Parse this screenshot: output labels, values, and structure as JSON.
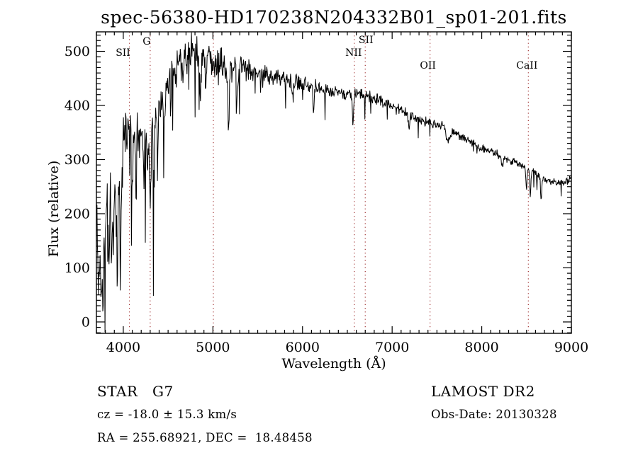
{
  "title": "spec-56380-HD170238N204332B01_sp01-201.fits",
  "annotations": {
    "classification": "STAR   G7",
    "survey": "LAMOST DR2",
    "cz": "cz = -18.0 ± 15.3 km/s",
    "obs_date": "Obs-Date: 20130328",
    "radec": "RA = 255.68921, DEC =  18.48458"
  },
  "chart_data": {
    "type": "line",
    "title": "spec-56380-HD170238N204332B01_sp01-201.fits",
    "xlabel": "Wavelength (Å)",
    "ylabel": "Flux (relative)",
    "xlim": [
      3700,
      9000
    ],
    "ylim": [
      -21,
      536
    ],
    "x_major_ticks": [
      4000,
      5000,
      6000,
      7000,
      8000,
      9000
    ],
    "x_minor_step": 100,
    "y_major_ticks": [
      0,
      100,
      200,
      300,
      400,
      500
    ],
    "y_minor_step": 10,
    "grid": false,
    "background": "#ffffff",
    "axis_color": "#000000",
    "line_color": "#000000",
    "marker_line_color": "#a03030",
    "marker_lines": [
      {
        "label": "SII",
        "wavelength": 4068,
        "label_dx": -9,
        "label_y": 79
      },
      {
        "label": "G",
        "wavelength": 4300,
        "label_dx": -5,
        "label_y": 63
      },
      {
        "label": "",
        "wavelength": 5005,
        "label_dx": 0,
        "label_y": 0
      },
      {
        "label": "NII",
        "wavelength": 6578,
        "label_dx": -1,
        "label_y": 79
      },
      {
        "label": "SII",
        "wavelength": 6700,
        "label_dx": 1,
        "label_y": 61
      },
      {
        "label": "OII",
        "wavelength": 7423,
        "label_dx": -3,
        "label_y": 97
      },
      {
        "label": "CaII",
        "wavelength": 8520,
        "label_dx": -2,
        "label_y": 97
      }
    ],
    "spectrum": {
      "sample_step": 5,
      "seed": 20130328,
      "continuum": [
        [
          3706,
          190
        ],
        [
          3740,
          185
        ],
        [
          3780,
          190
        ],
        [
          3820,
          215
        ],
        [
          3860,
          245
        ],
        [
          3900,
          255
        ],
        [
          3940,
          275
        ],
        [
          3980,
          300
        ],
        [
          4020,
          370
        ],
        [
          4060,
          385
        ],
        [
          4100,
          375
        ],
        [
          4140,
          345
        ],
        [
          4180,
          340
        ],
        [
          4220,
          345
        ],
        [
          4260,
          350
        ],
        [
          4300,
          340
        ],
        [
          4340,
          365
        ],
        [
          4400,
          400
        ],
        [
          4460,
          425
        ],
        [
          4520,
          445
        ],
        [
          4580,
          462
        ],
        [
          4640,
          478
        ],
        [
          4700,
          495
        ],
        [
          4760,
          500
        ],
        [
          4820,
          495
        ],
        [
          4880,
          487
        ],
        [
          4940,
          483
        ],
        [
          5000,
          480
        ],
        [
          5060,
          478
        ],
        [
          5120,
          473
        ],
        [
          5180,
          468
        ],
        [
          5240,
          470
        ],
        [
          5300,
          473
        ],
        [
          5360,
          470
        ],
        [
          5420,
          466
        ],
        [
          5480,
          462
        ],
        [
          5560,
          457
        ],
        [
          5640,
          453
        ],
        [
          5720,
          451
        ],
        [
          5800,
          449
        ],
        [
          5900,
          444
        ],
        [
          6000,
          440
        ],
        [
          6100,
          436
        ],
        [
          6200,
          431
        ],
        [
          6300,
          427
        ],
        [
          6400,
          424
        ],
        [
          6500,
          421
        ],
        [
          6600,
          420
        ],
        [
          6700,
          419
        ],
        [
          6800,
          412
        ],
        [
          6900,
          405
        ],
        [
          7000,
          398
        ],
        [
          7100,
          391
        ],
        [
          7200,
          383
        ],
        [
          7300,
          376
        ],
        [
          7400,
          369
        ],
        [
          7500,
          363
        ],
        [
          7560,
          366
        ],
        [
          7620,
          358
        ],
        [
          7680,
          350
        ],
        [
          7760,
          343
        ],
        [
          7840,
          336
        ],
        [
          7920,
          328
        ],
        [
          8000,
          322
        ],
        [
          8100,
          315
        ],
        [
          8200,
          308
        ],
        [
          8300,
          300
        ],
        [
          8400,
          293
        ],
        [
          8500,
          286
        ],
        [
          8580,
          276
        ],
        [
          8660,
          268
        ],
        [
          8740,
          261
        ],
        [
          8820,
          257
        ],
        [
          8900,
          256
        ],
        [
          8950,
          259
        ],
        [
          9000,
          266
        ]
      ],
      "absorption_features": [
        [
          3727,
          110,
          14
        ],
        [
          3750,
          140,
          10
        ],
        [
          3770,
          150,
          10
        ],
        [
          3798,
          120,
          10
        ],
        [
          3835,
          140,
          10
        ],
        [
          3870,
          90,
          10
        ],
        [
          3889,
          110,
          10
        ],
        [
          3933,
          235,
          12
        ],
        [
          3968,
          205,
          12
        ],
        [
          4045,
          60,
          10
        ],
        [
          4101,
          130,
          12
        ],
        [
          4144,
          70,
          10
        ],
        [
          4226,
          100,
          10
        ],
        [
          4271,
          70,
          10
        ],
        [
          4300,
          125,
          12
        ],
        [
          4340,
          110,
          12
        ],
        [
          4383,
          85,
          10
        ],
        [
          4455,
          60,
          10
        ],
        [
          4530,
          55,
          10
        ],
        [
          4668,
          55,
          10
        ],
        [
          4861,
          80,
          12
        ],
        [
          4920,
          50,
          10
        ],
        [
          5175,
          100,
          14
        ],
        [
          5270,
          65,
          12
        ],
        [
          5890,
          35,
          10
        ],
        [
          6122,
          35,
          10
        ],
        [
          6563,
          68,
          10
        ],
        [
          7186,
          20,
          20
        ],
        [
          7620,
          22,
          40
        ],
        [
          8230,
          20,
          14
        ],
        [
          8498,
          42,
          10
        ],
        [
          8542,
          48,
          10
        ],
        [
          8662,
          45,
          10
        ]
      ],
      "noise_sigma": [
        [
          3706,
          50
        ],
        [
          3800,
          52
        ],
        [
          3900,
          45
        ],
        [
          4000,
          42
        ],
        [
          4100,
          38
        ],
        [
          4200,
          36
        ],
        [
          4300,
          36
        ],
        [
          4400,
          32
        ],
        [
          4500,
          28
        ],
        [
          4600,
          26
        ],
        [
          4700,
          24
        ],
        [
          4800,
          22
        ],
        [
          4900,
          21
        ],
        [
          5000,
          20
        ],
        [
          5100,
          19
        ],
        [
          5200,
          18
        ],
        [
          5300,
          17
        ],
        [
          5400,
          15
        ],
        [
          5500,
          13
        ],
        [
          5600,
          12
        ],
        [
          5800,
          11
        ],
        [
          6000,
          10
        ],
        [
          6200,
          9
        ],
        [
          6400,
          8.5
        ],
        [
          6600,
          8
        ],
        [
          6800,
          7.5
        ],
        [
          7000,
          7
        ],
        [
          7200,
          6.5
        ],
        [
          7400,
          6
        ],
        [
          7600,
          5.5
        ],
        [
          7800,
          5.5
        ],
        [
          8000,
          5
        ],
        [
          8200,
          5
        ],
        [
          8400,
          5
        ],
        [
          8600,
          5
        ],
        [
          8800,
          4.5
        ],
        [
          9000,
          4.5
        ]
      ]
    }
  }
}
